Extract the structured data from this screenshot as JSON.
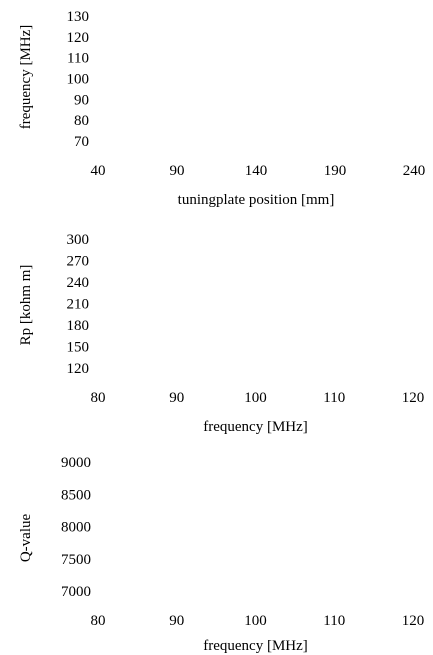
{
  "chart_data": [
    {
      "type": "line",
      "xlabel": "tuningplate position [mm]",
      "ylabel": "frequency [MHz]",
      "x_ticks": [
        40,
        90,
        140,
        190,
        240
      ],
      "y_ticks": [
        70,
        80,
        90,
        100,
        110,
        120,
        130
      ],
      "xlim": [
        40,
        240
      ],
      "ylim": [
        70,
        130
      ],
      "series": []
    },
    {
      "type": "line",
      "xlabel": "frequency [MHz]",
      "ylabel": "Rp [kohm m]",
      "x_ticks": [
        80,
        90,
        100,
        110,
        120
      ],
      "y_ticks": [
        120,
        150,
        180,
        210,
        240,
        270,
        300
      ],
      "xlim": [
        80,
        120
      ],
      "ylim": [
        120,
        300
      ],
      "series": []
    },
    {
      "type": "line",
      "xlabel": "frequency [MHz]",
      "ylabel": "Q-value",
      "x_ticks": [
        80,
        90,
        100,
        110,
        120
      ],
      "y_ticks": [
        7000,
        7500,
        8000,
        8500,
        9000
      ],
      "xlim": [
        80,
        120
      ],
      "ylim": [
        7000,
        9000
      ],
      "series": []
    }
  ]
}
